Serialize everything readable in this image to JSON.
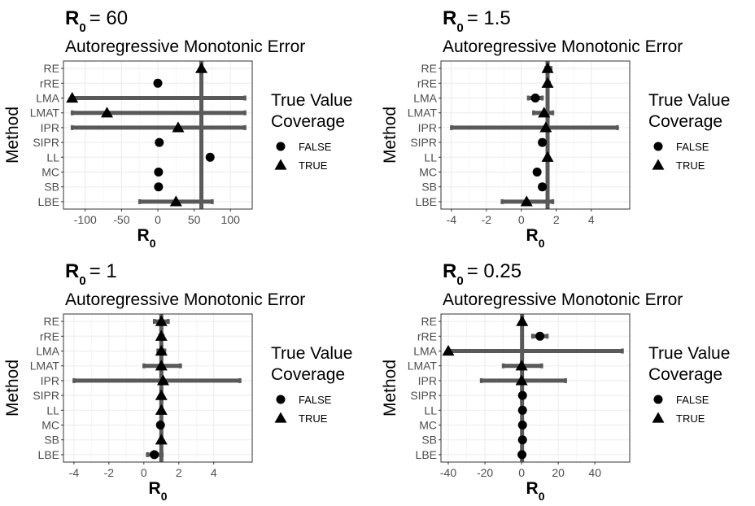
{
  "chart_data": [
    {
      "type": "scatter",
      "title_prefix": "R",
      "title_sub": "0",
      "title_value": "= 60",
      "subtitle": "Autoregressive Monotonic Error",
      "xlabel": "R",
      "xlabel_sub": "0",
      "ylabel": "Method",
      "categories": [
        "RE",
        "rRE",
        "LMA",
        "LMAT",
        "IPR",
        "SIPR",
        "LL",
        "MC",
        "SB",
        "LBE"
      ],
      "xlim": [
        -130,
        130
      ],
      "xticks": [
        -100,
        -50,
        0,
        50,
        100
      ],
      "xtick_labels": [
        "-100",
        "-50",
        "0",
        "50",
        "100"
      ],
      "true_value": 60,
      "estimates": [
        60,
        0,
        -118,
        -70,
        28,
        2,
        72,
        1,
        1,
        25
      ],
      "lower": [
        60,
        60,
        -118,
        -118,
        -118,
        null,
        null,
        null,
        null,
        -25
      ],
      "upper": [
        60,
        60,
        120,
        120,
        120,
        null,
        null,
        null,
        null,
        75
      ],
      "coverage": [
        true,
        false,
        true,
        true,
        true,
        false,
        false,
        false,
        false,
        true
      ]
    },
    {
      "type": "scatter",
      "title_prefix": "R",
      "title_sub": "0",
      "title_value": "= 1.5",
      "subtitle": "Autoregressive Monotonic Error",
      "xlabel": "R",
      "xlabel_sub": "0",
      "ylabel": "Method",
      "categories": [
        "RE",
        "rRE",
        "LMA",
        "LMAT",
        "IPR",
        "SIPR",
        "LL",
        "MC",
        "SB",
        "LBE"
      ],
      "xlim": [
        -4.6,
        6.2
      ],
      "xticks": [
        -4,
        -2,
        0,
        2,
        4
      ],
      "xtick_labels": [
        "-4",
        "-2",
        "0",
        "2",
        "4"
      ],
      "true_value": 1.5,
      "estimates": [
        1.5,
        1.5,
        0.8,
        1.3,
        1.4,
        1.2,
        1.5,
        0.9,
        1.2,
        0.3
      ],
      "lower": [
        1.4,
        1.5,
        0.4,
        0.7,
        -4,
        null,
        null,
        null,
        null,
        -1.1
      ],
      "upper": [
        1.7,
        1.6,
        1.2,
        1.8,
        5.5,
        null,
        null,
        null,
        null,
        1.8
      ],
      "coverage": [
        true,
        true,
        false,
        true,
        true,
        false,
        true,
        false,
        false,
        true
      ]
    },
    {
      "type": "scatter",
      "title_prefix": "R",
      "title_sub": "0",
      "title_value": "= 1",
      "subtitle": "Autoregressive Monotonic Error",
      "xlabel": "R",
      "xlabel_sub": "0",
      "ylabel": "Method",
      "categories": [
        "RE",
        "rRE",
        "LMA",
        "LMAT",
        "IPR",
        "SIPR",
        "LL",
        "MC",
        "SB",
        "LBE"
      ],
      "xlim": [
        -4.6,
        6.2
      ],
      "xticks": [
        -4,
        -2,
        0,
        2,
        4
      ],
      "xtick_labels": [
        "-4",
        "-2",
        "0",
        "2",
        "4"
      ],
      "true_value": 1,
      "estimates": [
        1.0,
        1.0,
        1.0,
        1.0,
        1.1,
        1.0,
        1.0,
        0.95,
        1.0,
        0.6
      ],
      "lower": [
        0.6,
        0.9,
        0.8,
        0.0,
        -4,
        null,
        null,
        null,
        null,
        0.2
      ],
      "upper": [
        1.4,
        1.1,
        1.2,
        2.1,
        5.5,
        null,
        null,
        null,
        null,
        1.05
      ],
      "coverage": [
        true,
        true,
        true,
        true,
        true,
        true,
        true,
        false,
        true,
        false
      ]
    },
    {
      "type": "scatter",
      "title_prefix": "R",
      "title_sub": "0",
      "title_value": "= 0.25",
      "subtitle": "Autoregressive Monotonic Error",
      "xlabel": "R",
      "xlabel_sub": "0",
      "ylabel": "Method",
      "categories": [
        "RE",
        "rRE",
        "LMA",
        "LMAT",
        "IPR",
        "SIPR",
        "LL",
        "MC",
        "SB",
        "LBE"
      ],
      "xlim": [
        -44,
        59
      ],
      "xticks": [
        -40,
        -20,
        0,
        20,
        40
      ],
      "xtick_labels": [
        "-40",
        "-20",
        "0",
        "20",
        "40"
      ],
      "true_value": 0.25,
      "estimates": [
        0.3,
        10,
        -40,
        0,
        0,
        0.5,
        0.5,
        0.5,
        0.5,
        0.2
      ],
      "lower": [
        0,
        6,
        -40,
        -10,
        -22,
        null,
        null,
        null,
        null,
        0
      ],
      "upper": [
        0.5,
        14,
        55,
        11,
        24,
        null,
        null,
        null,
        null,
        0.5
      ],
      "coverage": [
        true,
        false,
        true,
        true,
        true,
        false,
        false,
        false,
        false,
        false
      ]
    }
  ],
  "legend": {
    "title_line1": "True Value",
    "title_line2": "Coverage",
    "labels": [
      "FALSE",
      "TRUE"
    ]
  },
  "colors": {
    "panel_border": "#333333",
    "grid_major": "#ebebeb",
    "grid_minor": "#f5f5f5",
    "interval": "#595959",
    "true_value_line": "#5a5a5a",
    "point": "#000000",
    "tick_text": "#4d4d4d"
  }
}
